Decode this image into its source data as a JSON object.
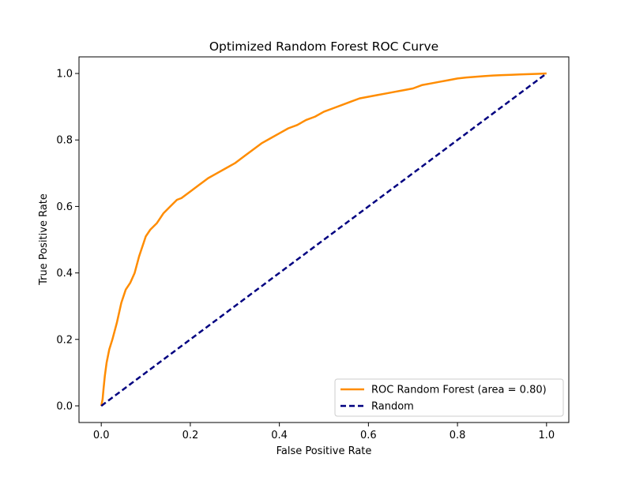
{
  "chart_data": {
    "type": "line",
    "title": "Optimized Random Forest ROC Curve",
    "xlabel": "False Positive Rate",
    "ylabel": "True Positive Rate",
    "xlim": [
      -0.05,
      1.05
    ],
    "ylim": [
      -0.05,
      1.05
    ],
    "xticks": [
      0.0,
      0.2,
      0.4,
      0.6,
      0.8,
      1.0
    ],
    "yticks": [
      0.0,
      0.2,
      0.4,
      0.6,
      0.8,
      1.0
    ],
    "xtick_labels": [
      "0.0",
      "0.2",
      "0.4",
      "0.6",
      "0.8",
      "1.0"
    ],
    "ytick_labels": [
      "0.0",
      "0.2",
      "0.4",
      "0.6",
      "0.8",
      "1.0"
    ],
    "grid": false,
    "legend_position": "lower-right",
    "series": [
      {
        "name": "ROC Random Forest (area = 0.80)",
        "color": "#ff8c00",
        "style": "solid",
        "x": [
          0.0,
          0.003,
          0.005,
          0.008,
          0.012,
          0.018,
          0.025,
          0.035,
          0.045,
          0.055,
          0.065,
          0.075,
          0.085,
          0.09,
          0.095,
          0.1,
          0.11,
          0.125,
          0.14,
          0.155,
          0.17,
          0.18,
          0.2,
          0.22,
          0.24,
          0.26,
          0.28,
          0.3,
          0.32,
          0.34,
          0.36,
          0.38,
          0.4,
          0.42,
          0.44,
          0.46,
          0.48,
          0.5,
          0.52,
          0.54,
          0.56,
          0.58,
          0.6,
          0.62,
          0.64,
          0.66,
          0.68,
          0.7,
          0.72,
          0.74,
          0.76,
          0.78,
          0.8,
          0.82,
          0.84,
          0.86,
          0.88,
          0.9,
          0.92,
          0.94,
          0.96,
          0.98,
          1.0
        ],
        "y": [
          0.0,
          0.02,
          0.05,
          0.09,
          0.13,
          0.17,
          0.2,
          0.25,
          0.31,
          0.35,
          0.37,
          0.4,
          0.45,
          0.47,
          0.49,
          0.51,
          0.53,
          0.55,
          0.58,
          0.6,
          0.62,
          0.625,
          0.645,
          0.665,
          0.685,
          0.7,
          0.715,
          0.73,
          0.75,
          0.77,
          0.79,
          0.805,
          0.82,
          0.835,
          0.845,
          0.86,
          0.87,
          0.885,
          0.895,
          0.905,
          0.915,
          0.925,
          0.93,
          0.935,
          0.94,
          0.945,
          0.95,
          0.955,
          0.965,
          0.97,
          0.975,
          0.98,
          0.985,
          0.988,
          0.99,
          0.992,
          0.994,
          0.995,
          0.996,
          0.997,
          0.998,
          0.999,
          1.0
        ]
      },
      {
        "name": "Random",
        "color": "#000080",
        "style": "dashed",
        "x": [
          0.0,
          1.0
        ],
        "y": [
          0.0,
          1.0
        ]
      }
    ]
  }
}
